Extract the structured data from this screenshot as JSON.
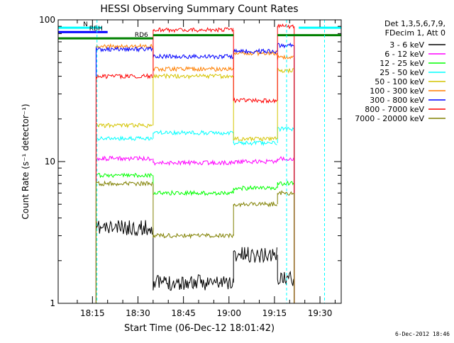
{
  "stamp": "6-Dec-2012 18:46",
  "chart_data": {
    "type": "line",
    "title": "HESSI Observing Summary Count Rates",
    "xlabel": "Start Time (06-Dec-12 18:01:42)",
    "ylabel": "Count Rate (s⁻¹ detector⁻¹)",
    "yscale": "log",
    "ylim": [
      1,
      100
    ],
    "xlim_minutes": [
      0,
      40
    ],
    "yticks": [
      {
        "value": 1,
        "label": "1"
      },
      {
        "value": 10,
        "label": "10"
      },
      {
        "value": 100,
        "label": "100"
      }
    ],
    "xticks": [
      {
        "minute": 15,
        "label": "18:15"
      },
      {
        "minute": 30,
        "label": "18:30"
      },
      {
        "minute": 45,
        "label": "18:45"
      },
      {
        "minute": 60,
        "label": "19:00"
      },
      {
        "minute": 75,
        "label": "19:15"
      },
      {
        "minute": 90,
        "label": "19:30"
      }
    ],
    "x_axis_start_minute": 3.7,
    "x_axis_end_minute": 97,
    "legend_header": [
      "Det 1,3,5,6,7,9,",
      "FDecim 1, Att 0"
    ],
    "legend_position": "right",
    "series": [
      {
        "name": "3 - 6 keV",
        "color": "#000000"
      },
      {
        "name": "6 - 12 keV",
        "color": "#ff00ff"
      },
      {
        "name": "12 - 25 keV",
        "color": "#00ff00"
      },
      {
        "name": "25 - 50 keV",
        "color": "#00ffff"
      },
      {
        "name": "50 - 100 keV",
        "color": "#d4c400"
      },
      {
        "name": "100 - 300 keV",
        "color": "#ff7f00"
      },
      {
        "name": "300 - 800 keV",
        "color": "#0000ff"
      },
      {
        "name": "800 - 7000 keV",
        "color": "#ff0000"
      },
      {
        "name": "7000 - 20000 keV",
        "color": "#808000"
      }
    ],
    "segments": [
      {
        "start": 16.2,
        "end": 35.0,
        "levels": {
          "3 - 6 keV": 3.4,
          "6 - 12 keV": 10.5,
          "12 - 25 keV": 8.0,
          "25 - 50 keV": 14.5,
          "50 - 100 keV": 18.0,
          "100 - 300 keV": 65,
          "300 - 800 keV": 62,
          "800 - 7000 keV": 40,
          "7000 - 20000 keV": 7.0
        }
      },
      {
        "start": 35.0,
        "end": 61.5,
        "levels": {
          "3 - 6 keV": 1.4,
          "6 - 12 keV": 9.8,
          "12 - 25 keV": 6.0,
          "25 - 50 keV": 16.0,
          "50 - 100 keV": 40,
          "100 - 300 keV": 45,
          "300 - 800 keV": 55,
          "800 - 7000 keV": 85,
          "7000 - 20000 keV": 3.0
        }
      },
      {
        "start": 61.5,
        "end": 76.0,
        "levels": {
          "3 - 6 keV": 2.2,
          "6 - 12 keV": 10.0,
          "12 - 25 keV": 6.5,
          "25 - 50 keV": 13.5,
          "50 - 100 keV": 14.5,
          "100 - 300 keV": 58,
          "300 - 800 keV": 60,
          "800 - 7000 keV": 27,
          "7000 - 20000 keV": 5.0
        }
      },
      {
        "start": 76.0,
        "end": 81.5,
        "levels": {
          "3 - 6 keV": 1.5,
          "6 - 12 keV": 10.5,
          "12 - 25 keV": 7.0,
          "25 - 50 keV": 17.0,
          "50 - 100 keV": 44,
          "100 - 300 keV": 54,
          "300 - 800 keV": 66,
          "800 - 7000 keV": 90,
          "7000 - 20000 keV": 6.0
        }
      }
    ],
    "flags": [
      {
        "label": "N",
        "color": "#00ffff",
        "start_minute": 3.7,
        "end_minute": 18.0,
        "value": 88
      },
      {
        "label": "RBH",
        "color": "#0000ff",
        "start_minute": 3.7,
        "end_minute": 20.0,
        "value": 82
      },
      {
        "label": "RD6",
        "color": "#008000",
        "start_minute": 3.7,
        "end_minute": 35.0,
        "value": 74
      },
      {
        "label": "",
        "color": "#008000",
        "start_minute": 35.0,
        "end_minute": 61.5,
        "value": 78
      },
      {
        "label": "",
        "color": "#008000",
        "start_minute": 76.0,
        "end_minute": 97,
        "value": 78
      },
      {
        "label": "",
        "color": "#00ffff",
        "start_minute": 83.0,
        "end_minute": 97,
        "value": 88
      }
    ],
    "dashed_markers_minute": [
      16.5,
      79.0,
      91.5
    ]
  }
}
